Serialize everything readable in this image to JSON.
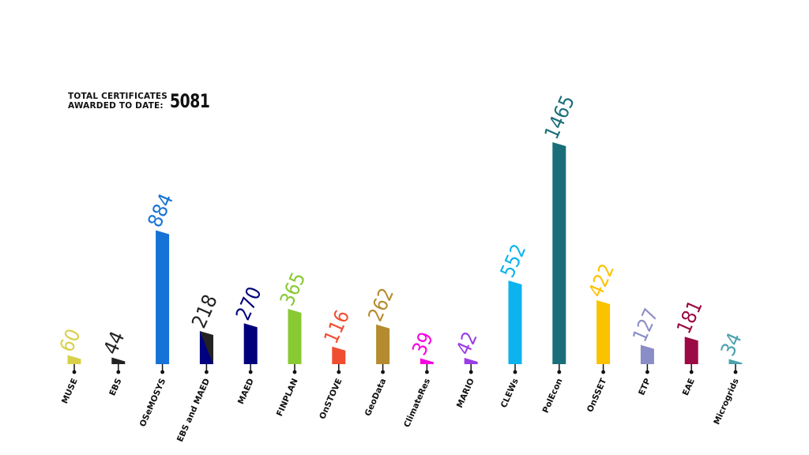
{
  "header": {
    "line1": "TOTAL CERTIFICATES",
    "line2": "AWARDED TO DATE:",
    "total": "5081"
  },
  "chart_data": {
    "type": "bar",
    "categories": [
      "MUSE",
      "EBS",
      "OSeMOSYS",
      "EBS and MAED",
      "MAED",
      "FINPLAN",
      "OnSTOVE",
      "GeoData",
      "ClimateRes",
      "MARIO",
      "CLEWs",
      "PolEcon",
      "OnSSET",
      "ETP",
      "EAE",
      "Microgrids"
    ],
    "values": [
      60,
      44,
      884,
      218,
      270,
      365,
      116,
      262,
      39,
      42,
      552,
      1465,
      422,
      127,
      181,
      34
    ],
    "colors": [
      "#d9d04a",
      "#222222",
      "#1572d6",
      "#000080",
      "#00007a",
      "#88c934",
      "#f04e30",
      "#b58b2f",
      "#f700e0",
      "#9b3ce6",
      "#0cb3ee",
      "#1a6e7a",
      "#fbc200",
      "#8b8dc7",
      "#9b0a44",
      "#4aa2ad"
    ],
    "ylim": [
      0,
      1465
    ]
  }
}
